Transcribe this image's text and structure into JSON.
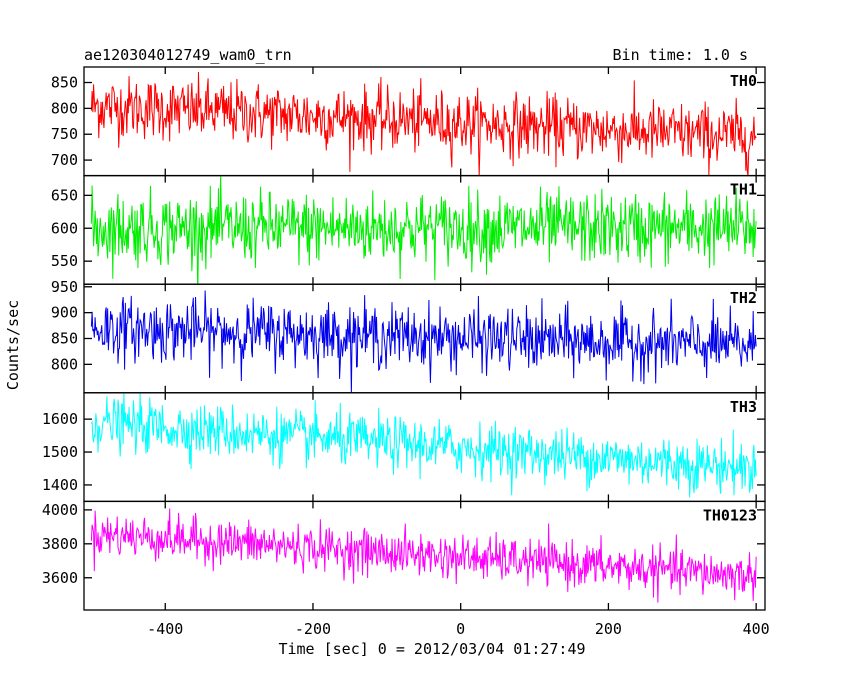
{
  "header": {
    "title": "ae120304012749_wam0_trn",
    "bin_time": "Bin time: 1.0 s"
  },
  "chart_data": {
    "type": "line",
    "xlabel": "Time [sec] 0 = 2012/03/04 01:27:49",
    "ylabel": "Counts/sec",
    "xlim": [
      -510,
      412
    ],
    "x_ticks": [
      -400,
      -200,
      0,
      200,
      400
    ],
    "x_range": [
      -500,
      400
    ],
    "bin_time_s": 1.0,
    "panels": [
      {
        "name": "TH0",
        "color": "#ff0000",
        "ylim": [
          670,
          880
        ],
        "y_ticks": [
          700,
          750,
          800,
          850
        ],
        "mean_start": 805,
        "mean_end": 745,
        "noise": 30
      },
      {
        "name": "TH1",
        "color": "#00ee00",
        "ylim": [
          515,
          680
        ],
        "y_ticks": [
          550,
          600,
          650
        ],
        "mean_start": 600,
        "mean_end": 600,
        "noise": 27
      },
      {
        "name": "TH2",
        "color": "#0000ee",
        "ylim": [
          745,
          955
        ],
        "y_ticks": [
          800,
          850,
          900,
          950
        ],
        "mean_start": 870,
        "mean_end": 835,
        "noise": 30
      },
      {
        "name": "TH3",
        "color": "#00ffff",
        "ylim": [
          1350,
          1680
        ],
        "y_ticks": [
          1400,
          1500,
          1600
        ],
        "mean_start": 1590,
        "mean_end": 1450,
        "noise": 40
      },
      {
        "name": "TH0123",
        "color": "#ff00ff",
        "ylim": [
          3410,
          4050
        ],
        "y_ticks": [
          3600,
          3800,
          4000
        ],
        "mean_start": 3860,
        "mean_end": 3610,
        "noise": 65
      }
    ]
  }
}
